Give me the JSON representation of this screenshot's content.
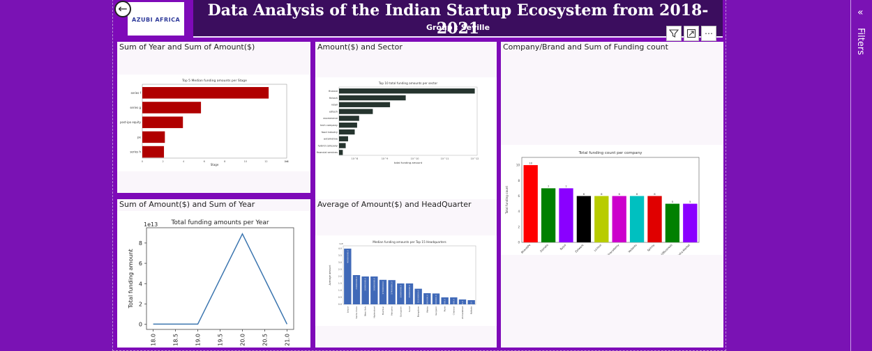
{
  "header": {
    "title": "Data Analysis of the Indian Startup Ecosystem from 2018-2021",
    "subtitle": "Group : Seville",
    "logo_text": "AZUBI AFRICA"
  },
  "icons": {
    "back": "back-arrow-icon",
    "filter": "filter-icon",
    "focus": "focus-mode-icon",
    "more": "more-options-icon",
    "collapse": "double-chevron-icon"
  },
  "visual_actions": {
    "more_label": "⋯"
  },
  "filters": {
    "label": "Filters",
    "chevron": "«"
  },
  "tiles": {
    "t1": {
      "title": "Sum of Year and Sum of Amount($)"
    },
    "t2": {
      "title": "Amount($) and Sector"
    },
    "t3": {
      "title": "Company/Brand and Sum of Funding count"
    },
    "t4": {
      "title": "Sum of Amount($) and Sum of Year"
    },
    "t5": {
      "title": "Average of Amount($) and HeadQuarter"
    }
  },
  "chart_data": [
    {
      "id": "stage",
      "type": "bar",
      "orientation": "horizontal",
      "title": "Top 5 Median funding amounts per Stage",
      "xlabel": "Stage",
      "ylabel": "",
      "categories": [
        "series f",
        "series g",
        "post-ipo equity",
        "pe",
        "series h"
      ],
      "values": [
        140000000.0,
        65000000.0,
        45000000.0,
        25000000.0,
        24000000.0
      ],
      "xticks": [
        "0",
        "2",
        "4",
        "6",
        "8",
        "10",
        "12",
        "14"
      ],
      "exponent": "1e8",
      "color": "#b00000"
    },
    {
      "id": "sector",
      "type": "bar",
      "orientation": "horizontal",
      "title": "Top 10 total funding amounts per sector",
      "xlabel": "total funding amount",
      "categories": [
        "finance",
        "fintech",
        "retail",
        "edtech",
        "ecommerce",
        "tech company",
        "food industry",
        "automotive",
        "hybrid company",
        "financial services"
      ],
      "values": [
        1000000000000.0,
        5000000000.0,
        1500000000.0,
        400000000.0,
        140000000.0,
        120000000.0,
        100000000.0,
        60000000.0,
        50000000.0,
        40000000.0
      ],
      "xscale": "log",
      "xticks": [
        "10^8",
        "10^9",
        "10^10",
        "10^11",
        "10^12"
      ],
      "color": "#26352f"
    },
    {
      "id": "company",
      "type": "bar",
      "title": "Total funding count per company",
      "ylabel": "Total funding count",
      "categories": [
        "BharatPe",
        "Zomato",
        "Byjus",
        "Zetwerk",
        "Licious",
        "Unacademy",
        "Vedantu",
        "Spinny",
        "OfBusiness",
        "Infra.Market"
      ],
      "values": [
        10,
        7,
        7,
        6,
        6,
        6,
        6,
        6,
        5,
        5
      ],
      "labels": [
        "10",
        "7",
        "7",
        "6",
        "6",
        "6",
        "6",
        "6",
        "5",
        "5"
      ],
      "colors": [
        "#ff0000",
        "#008000",
        "#8a00ff",
        "#000000",
        "#b8cc00",
        "#cc00cc",
        "#00c0c0",
        "#e00000",
        "#008000",
        "#8a00ff"
      ],
      "ylim": [
        0,
        11
      ],
      "yticks": [
        "0",
        "2",
        "4",
        "6",
        "8",
        "10"
      ]
    },
    {
      "id": "year",
      "type": "line",
      "title": "Total funding amounts per Year",
      "ylabel": "Total funding amount",
      "exponent": "1e13",
      "x": [
        18,
        19,
        20,
        21
      ],
      "y": [
        0.02,
        0.02,
        8.9,
        0.02
      ],
      "xticks": [
        "18.0",
        "18.5",
        "19.0",
        "19.5",
        "20.0",
        "20.5",
        "21.0"
      ],
      "yticks": [
        "0",
        "2",
        "4",
        "6",
        "8"
      ],
      "xlim": [
        17.85,
        21.15
      ],
      "ylim": [
        -0.5,
        9.5
      ],
      "color": "#3b75af"
    },
    {
      "id": "hq",
      "type": "bar",
      "title": "Median funding amounts per Top 15 Headquarters",
      "ylabel": "Average amount",
      "categories": [
        "Jaipur",
        "Santa Clara",
        "New York",
        "Hyderabad",
        "Mumbai",
        "Haryana",
        "Gurugram",
        "Surat",
        "Bangalore",
        "Noida",
        "Gurgaon",
        "Pune",
        "Chennai",
        "Ahmedabad",
        "Kolkata"
      ],
      "values": [
        4.0,
        2.1,
        2.0,
        2.0,
        1.76,
        1.74,
        1.5,
        1.5,
        1.12,
        0.8,
        0.78,
        0.5,
        0.5,
        0.35,
        0.3
      ],
      "value_labels": [
        "400000000.0",
        "210000000.0",
        "200000000.0",
        "200000000.0",
        "176000000.0",
        "174000000.0",
        "150000000.0",
        "150000000.0",
        "112000000.0",
        "80000000.0",
        "78000000.0",
        "50000000.0",
        "50000000.0",
        "35000000.0",
        "30000000.0"
      ],
      "exponent": "1e8",
      "yticks": [
        "0.0",
        "0.5",
        "1.0",
        "1.5",
        "2.0",
        "2.5",
        "3.0",
        "3.5",
        "4.0"
      ],
      "ylim": [
        0,
        4.2
      ],
      "color": "#4069b8"
    }
  ]
}
